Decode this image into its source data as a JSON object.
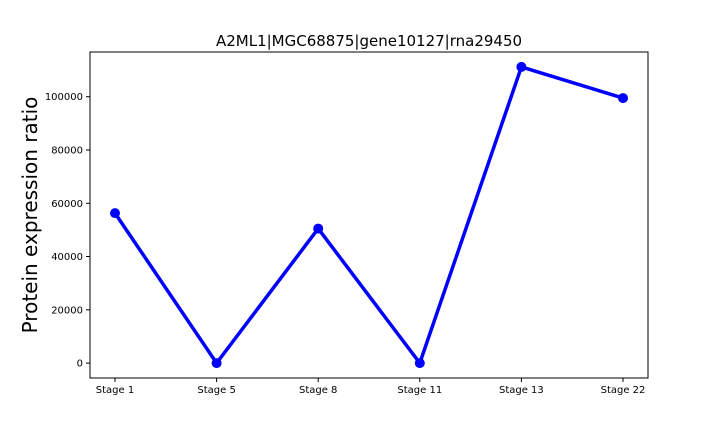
{
  "chart_data": {
    "type": "line",
    "title": "A2ML1|MGC68875|gene10127|rna29450",
    "xlabel": "",
    "ylabel": "Protein expression ratio",
    "categories": [
      "Stage 1",
      "Stage 5",
      "Stage 8",
      "Stage 11",
      "Stage 13",
      "Stage 22"
    ],
    "series": [
      {
        "values": [
          56300,
          0,
          50500,
          0,
          111200,
          99500
        ],
        "color": "#0000ff",
        "marker": "circle"
      }
    ],
    "ylim": [
      -5600,
      116800
    ],
    "yticks": [
      0,
      20000,
      40000,
      60000,
      80000,
      100000
    ],
    "ytick_labels": [
      "0",
      "20000",
      "40000",
      "60000",
      "80000",
      "100000"
    ],
    "grid": false,
    "legend": "none"
  }
}
